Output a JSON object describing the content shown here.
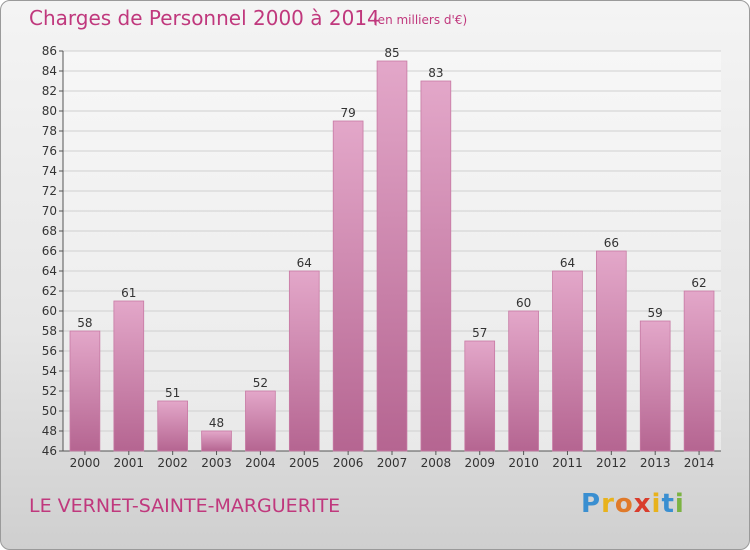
{
  "chart_data": {
    "type": "bar",
    "title": "Charges de Personnel 2000 à 2014",
    "subtitle": "(en milliers d'€)",
    "categories": [
      "2000",
      "2001",
      "2002",
      "2003",
      "2004",
      "2005",
      "2006",
      "2007",
      "2008",
      "2009",
      "2010",
      "2011",
      "2012",
      "2013",
      "2014"
    ],
    "values": [
      58,
      61,
      51,
      48,
      52,
      64,
      79,
      85,
      83,
      57,
      60,
      64,
      66,
      59,
      62
    ],
    "ylim": [
      46,
      86
    ],
    "ytick_step": 2,
    "grid": true,
    "bar_color": "#d98ab5",
    "xlabel": "",
    "ylabel": ""
  },
  "footer": {
    "commune": "LE VERNET-SAINTE-MARGUERITE"
  },
  "brand": {
    "name": "Proxiti",
    "letters": [
      {
        "ch": "P",
        "color": "#3a8fd1"
      },
      {
        "ch": "r",
        "color": "#e8b21c"
      },
      {
        "ch": "o",
        "color": "#e07a2a"
      },
      {
        "ch": "x",
        "color": "#d93c2c"
      },
      {
        "ch": "i",
        "color": "#e8b21c"
      },
      {
        "ch": "t",
        "color": "#3a8fd1"
      },
      {
        "ch": "i",
        "color": "#7cb342"
      }
    ]
  },
  "colors": {
    "title": "#c0387d",
    "axis_text": "#333333",
    "grid": "#d0d0d0"
  }
}
